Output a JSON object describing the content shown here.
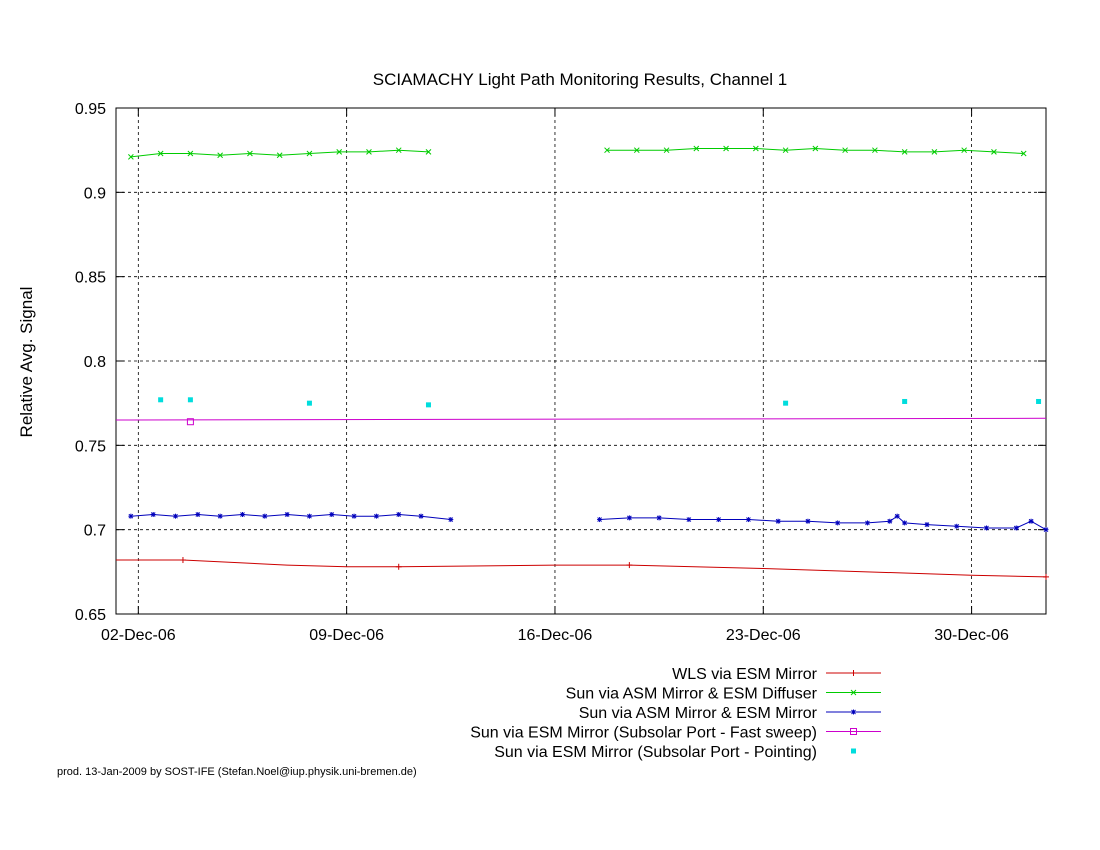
{
  "chart_data": {
    "type": "line",
    "title": "SCIAMACHY Light Path Monitoring Results, Channel 1",
    "xlabel": "",
    "ylabel": "Relative Avg. Signal",
    "xlim": [
      "2006-12-01T06:00",
      "2007-01-01T12:00"
    ],
    "ylim": [
      0.65,
      0.95
    ],
    "x_ticks": [
      {
        "label": "02-Dec-06",
        "date": "2006-12-02"
      },
      {
        "label": "09-Dec-06",
        "date": "2006-12-09"
      },
      {
        "label": "16-Dec-06",
        "date": "2006-12-16"
      },
      {
        "label": "23-Dec-06",
        "date": "2006-12-23"
      },
      {
        "label": "30-Dec-06",
        "date": "2006-12-30"
      }
    ],
    "y_ticks": [
      "0.65",
      "0.7",
      "0.75",
      "0.8",
      "0.85",
      "0.9",
      "0.95"
    ],
    "grid": "dashed",
    "legend_position": "bottom-right",
    "series": [
      {
        "name": "WLS via ESM Mirror",
        "color": "#cc0000",
        "marker": "plus",
        "line": true,
        "points": [
          [
            "2006-12-01T06:00",
            0.682
          ],
          [
            "2006-12-03T12:00",
            0.682
          ],
          [
            "2006-12-07T00:00",
            0.679
          ],
          [
            "2006-12-09T00:00",
            0.678
          ],
          [
            "2006-12-10T18:00",
            0.678
          ],
          [
            "2006-12-16T00:00",
            0.679
          ],
          [
            "2006-12-18T12:00",
            0.679
          ],
          [
            "2006-12-23T00:00",
            0.677
          ],
          [
            "2006-12-30T00:00",
            0.673
          ],
          [
            "2007-01-01T12:00",
            0.672
          ]
        ],
        "marker_points": [
          [
            "2006-12-03T12:00",
            0.682
          ],
          [
            "2006-12-10T18:00",
            0.678
          ],
          [
            "2006-12-18T12:00",
            0.679
          ],
          [
            "2007-01-01T12:00",
            0.672
          ]
        ]
      },
      {
        "name": "Sun via ASM Mirror & ESM Diffuser",
        "color": "#00cc00",
        "marker": "cross",
        "line": true,
        "segments": [
          [
            [
              "2006-12-01T18:00",
              0.921
            ],
            [
              "2006-12-02T18:00",
              0.923
            ],
            [
              "2006-12-03T18:00",
              0.923
            ],
            [
              "2006-12-04T18:00",
              0.922
            ],
            [
              "2006-12-05T18:00",
              0.923
            ],
            [
              "2006-12-06T18:00",
              0.922
            ],
            [
              "2006-12-07T18:00",
              0.923
            ],
            [
              "2006-12-08T18:00",
              0.924
            ],
            [
              "2006-12-09T18:00",
              0.924
            ],
            [
              "2006-12-10T18:00",
              0.925
            ],
            [
              "2006-12-11T18:00",
              0.924
            ]
          ],
          [
            [
              "2006-12-17T18:00",
              0.925
            ],
            [
              "2006-12-18T18:00",
              0.925
            ],
            [
              "2006-12-19T18:00",
              0.925
            ],
            [
              "2006-12-20T18:00",
              0.926
            ],
            [
              "2006-12-21T18:00",
              0.926
            ],
            [
              "2006-12-22T18:00",
              0.926
            ],
            [
              "2006-12-23T18:00",
              0.925
            ],
            [
              "2006-12-24T18:00",
              0.926
            ],
            [
              "2006-12-25T18:00",
              0.925
            ],
            [
              "2006-12-26T18:00",
              0.925
            ],
            [
              "2006-12-27T18:00",
              0.924
            ],
            [
              "2006-12-28T18:00",
              0.924
            ],
            [
              "2006-12-29T18:00",
              0.925
            ],
            [
              "2006-12-30T18:00",
              0.924
            ],
            [
              "2006-12-31T18:00",
              0.923
            ]
          ]
        ]
      },
      {
        "name": "Sun via ASM Mirror & ESM Mirror",
        "color": "#0000bb",
        "marker": "star",
        "line": true,
        "segments": [
          [
            [
              "2006-12-01T18:00",
              0.708
            ],
            [
              "2006-12-02T12:00",
              0.709
            ],
            [
              "2006-12-03T06:00",
              0.708
            ],
            [
              "2006-12-04T00:00",
              0.709
            ],
            [
              "2006-12-04T18:00",
              0.708
            ],
            [
              "2006-12-05T12:00",
              0.709
            ],
            [
              "2006-12-06T06:00",
              0.708
            ],
            [
              "2006-12-07T00:00",
              0.709
            ],
            [
              "2006-12-07T18:00",
              0.708
            ],
            [
              "2006-12-08T12:00",
              0.709
            ],
            [
              "2006-12-09T06:00",
              0.708
            ],
            [
              "2006-12-10T00:00",
              0.708
            ],
            [
              "2006-12-10T18:00",
              0.709
            ],
            [
              "2006-12-11T12:00",
              0.708
            ],
            [
              "2006-12-12T12:00",
              0.706
            ]
          ],
          [
            [
              "2006-12-17T12:00",
              0.706
            ],
            [
              "2006-12-18T12:00",
              0.707
            ],
            [
              "2006-12-19T12:00",
              0.707
            ],
            [
              "2006-12-20T12:00",
              0.706
            ],
            [
              "2006-12-21T12:00",
              0.706
            ],
            [
              "2006-12-22T12:00",
              0.706
            ],
            [
              "2006-12-23T12:00",
              0.705
            ],
            [
              "2006-12-24T12:00",
              0.705
            ],
            [
              "2006-12-25T12:00",
              0.704
            ],
            [
              "2006-12-26T12:00",
              0.704
            ],
            [
              "2006-12-27T06:00",
              0.705
            ],
            [
              "2006-12-27T12:00",
              0.708
            ],
            [
              "2006-12-27T18:00",
              0.704
            ],
            [
              "2006-12-28T12:00",
              0.703
            ],
            [
              "2006-12-29T12:00",
              0.702
            ],
            [
              "2006-12-30T12:00",
              0.701
            ],
            [
              "2006-12-31T12:00",
              0.701
            ],
            [
              "2007-01-01T00:00",
              0.705
            ],
            [
              "2007-01-01T12:00",
              0.7
            ]
          ]
        ]
      },
      {
        "name": "Sun via ESM Mirror (Subsolar Port - Fast sweep)",
        "color": "#cc00cc",
        "marker": "square",
        "line": true,
        "points": [
          [
            "2006-12-01T06:00",
            0.765
          ],
          [
            "2007-01-01T12:00",
            0.766
          ]
        ],
        "marker_points": [
          [
            "2006-12-03T18:00",
            0.764
          ]
        ]
      },
      {
        "name": "Sun via ESM Mirror (Subsolar Port - Pointing)",
        "color": "#00dddd",
        "marker": "dot",
        "line": false,
        "points": [
          [
            "2006-12-02T18:00",
            0.777
          ],
          [
            "2006-12-03T18:00",
            0.777
          ],
          [
            "2006-12-07T18:00",
            0.775
          ],
          [
            "2006-12-11T18:00",
            0.774
          ],
          [
            "2006-12-23T18:00",
            0.775
          ],
          [
            "2006-12-27T18:00",
            0.776
          ],
          [
            "2007-01-01T06:00",
            0.776
          ]
        ]
      }
    ]
  },
  "footer": "prod. 13-Jan-2009 by SOST-IFE (Stefan.Noel@iup.physik.uni-bremen.de)"
}
